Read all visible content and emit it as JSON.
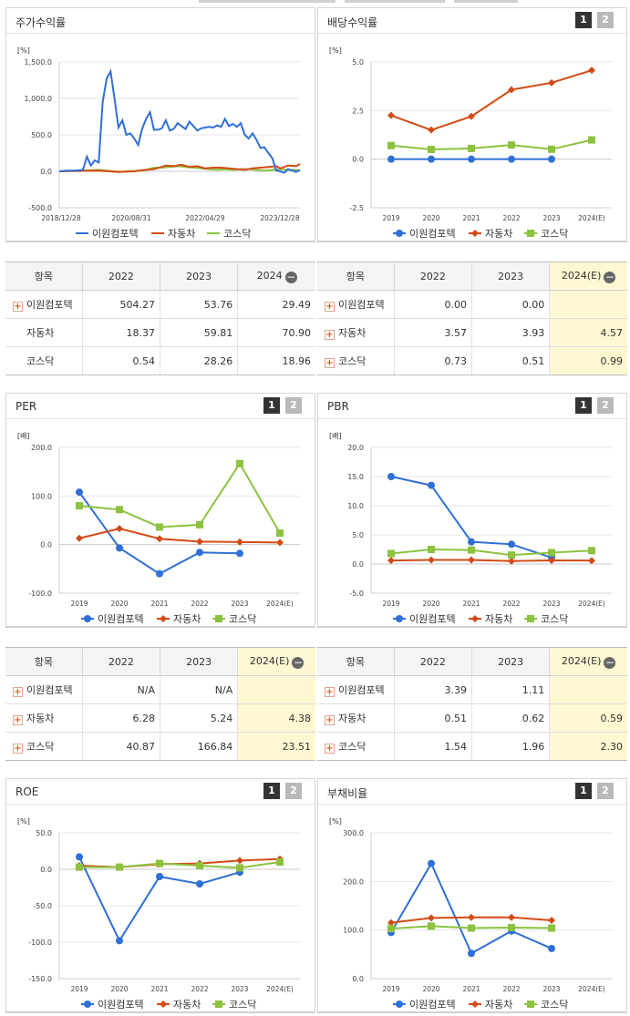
{
  "legend_names": [
    "이원컴포텍",
    "자동차",
    "코스닥"
  ],
  "colors": {
    "s1": "#2f6fd6",
    "s2": "#d44a15",
    "s3": "#8cc23f"
  },
  "buttons": {
    "one": "1",
    "two": "2"
  },
  "panels": {
    "stock": {
      "title": "주가수익률"
    },
    "dividend": {
      "title": "배당수익률"
    },
    "per": {
      "title": "PER"
    },
    "pbr": {
      "title": "PBR"
    },
    "roe": {
      "title": "ROE"
    },
    "debt": {
      "title": "부채비율"
    }
  },
  "tables": {
    "stock": {
      "headers": [
        "항목",
        "2022",
        "2023",
        "2024"
      ],
      "rows": [
        {
          "label": "이원컴포텍",
          "plus": true,
          "values": [
            "504.27",
            "53.76",
            "29.49"
          ]
        },
        {
          "label": "자동차",
          "plus": false,
          "values": [
            "18.37",
            "59.81",
            "70.90"
          ]
        },
        {
          "label": "코스닥",
          "plus": false,
          "values": [
            "0.54",
            "28.26",
            "18.96"
          ]
        }
      ]
    },
    "dividend": {
      "headers": [
        "항목",
        "2022",
        "2023",
        "2024(E)"
      ],
      "rows": [
        {
          "label": "이원컴포텍",
          "plus": true,
          "values": [
            "0.00",
            "0.00",
            ""
          ]
        },
        {
          "label": "자동차",
          "plus": true,
          "values": [
            "3.57",
            "3.93",
            "4.57"
          ]
        },
        {
          "label": "코스닥",
          "plus": true,
          "values": [
            "0.73",
            "0.51",
            "0.99"
          ]
        }
      ]
    },
    "per": {
      "headers": [
        "항목",
        "2022",
        "2023",
        "2024(E)"
      ],
      "rows": [
        {
          "label": "이원컴포텍",
          "plus": true,
          "values": [
            "N/A",
            "N/A",
            ""
          ]
        },
        {
          "label": "자동차",
          "plus": true,
          "values": [
            "6.28",
            "5.24",
            "4.38"
          ]
        },
        {
          "label": "코스닥",
          "plus": true,
          "values": [
            "40.87",
            "166.84",
            "23.51"
          ]
        }
      ]
    },
    "pbr": {
      "headers": [
        "항목",
        "2022",
        "2023",
        "2024(E)"
      ],
      "rows": [
        {
          "label": "이원컴포텍",
          "plus": true,
          "values": [
            "3.39",
            "1.11",
            ""
          ]
        },
        {
          "label": "자동차",
          "plus": true,
          "values": [
            "0.51",
            "0.62",
            "0.59"
          ]
        },
        {
          "label": "코스닥",
          "plus": true,
          "values": [
            "1.54",
            "1.96",
            "2.30"
          ]
        }
      ]
    }
  },
  "chart_data": [
    {
      "id": "stock",
      "type": "line",
      "unit": "[%]",
      "yticks": [
        "1,500.0",
        "1,000.0",
        "500.0",
        "0.0",
        "-500.0"
      ],
      "ylim": [
        -500,
        1500
      ],
      "xticks": [
        "2018/12/28",
        "2020/08/31",
        "2022/04/29",
        "2023/12/28"
      ],
      "x_domain": [
        0,
        61
      ],
      "series": [
        {
          "name": "이원컴포텍",
          "values": [
            [
              0,
              0
            ],
            [
              2,
              10
            ],
            [
              4,
              10
            ],
            [
              6,
              20
            ],
            [
              7,
              200
            ],
            [
              8,
              80
            ],
            [
              9,
              150
            ],
            [
              10,
              120
            ],
            [
              11,
              950
            ],
            [
              12,
              1270
            ],
            [
              13,
              1370
            ],
            [
              14,
              1000
            ],
            [
              15,
              600
            ],
            [
              16,
              700
            ],
            [
              17,
              500
            ],
            [
              18,
              520
            ],
            [
              19,
              450
            ],
            [
              20,
              360
            ],
            [
              21,
              580
            ],
            [
              22,
              720
            ],
            [
              23,
              810
            ],
            [
              24,
              570
            ],
            [
              25,
              570
            ],
            [
              26,
              590
            ],
            [
              27,
              700
            ],
            [
              28,
              560
            ],
            [
              29,
              580
            ],
            [
              30,
              660
            ],
            [
              31,
              620
            ],
            [
              32,
              580
            ],
            [
              33,
              680
            ],
            [
              34,
              620
            ],
            [
              35,
              560
            ],
            [
              36,
              590
            ],
            [
              37,
              600
            ],
            [
              38,
              610
            ],
            [
              39,
              600
            ],
            [
              40,
              630
            ],
            [
              41,
              610
            ],
            [
              42,
              720
            ],
            [
              43,
              620
            ],
            [
              44,
              650
            ],
            [
              45,
              610
            ],
            [
              46,
              660
            ],
            [
              47,
              500
            ],
            [
              48,
              450
            ],
            [
              49,
              520
            ],
            [
              50,
              430
            ],
            [
              51,
              320
            ],
            [
              52,
              330
            ],
            [
              53,
              250
            ],
            [
              54,
              180
            ],
            [
              55,
              10
            ],
            [
              56,
              0
            ],
            [
              57,
              -20
            ],
            [
              58,
              30
            ],
            [
              59,
              10
            ],
            [
              60,
              -10
            ],
            [
              61,
              20
            ]
          ]
        },
        {
          "name": "자동차",
          "values": [
            [
              0,
              0
            ],
            [
              5,
              5
            ],
            [
              10,
              10
            ],
            [
              15,
              -10
            ],
            [
              19,
              0
            ],
            [
              22,
              20
            ],
            [
              24,
              30
            ],
            [
              26,
              60
            ],
            [
              27,
              80
            ],
            [
              29,
              70
            ],
            [
              31,
              90
            ],
            [
              33,
              60
            ],
            [
              35,
              70
            ],
            [
              37,
              40
            ],
            [
              39,
              50
            ],
            [
              41,
              50
            ],
            [
              43,
              40
            ],
            [
              45,
              30
            ],
            [
              47,
              20
            ],
            [
              49,
              40
            ],
            [
              51,
              50
            ],
            [
              53,
              60
            ],
            [
              55,
              70
            ],
            [
              56,
              40
            ],
            [
              58,
              80
            ],
            [
              60,
              70
            ],
            [
              61,
              100
            ]
          ]
        },
        {
          "name": "코스닥",
          "values": [
            [
              0,
              0
            ],
            [
              5,
              10
            ],
            [
              10,
              20
            ],
            [
              15,
              -5
            ],
            [
              19,
              5
            ],
            [
              22,
              20
            ],
            [
              24,
              50
            ],
            [
              26,
              50
            ],
            [
              28,
              60
            ],
            [
              30,
              70
            ],
            [
              32,
              60
            ],
            [
              34,
              50
            ],
            [
              36,
              40
            ],
            [
              38,
              30
            ],
            [
              40,
              20
            ],
            [
              42,
              30
            ],
            [
              44,
              20
            ],
            [
              46,
              30
            ],
            [
              48,
              30
            ],
            [
              50,
              20
            ],
            [
              52,
              10
            ],
            [
              54,
              20
            ],
            [
              56,
              30
            ],
            [
              58,
              20
            ],
            [
              60,
              20
            ],
            [
              61,
              10
            ]
          ]
        }
      ]
    },
    {
      "id": "dividend",
      "type": "line",
      "unit": "[%]",
      "yticks": [
        "5.0",
        "2.5",
        "0.0",
        "-2.5"
      ],
      "ylim": [
        -2.5,
        5
      ],
      "categories": [
        "2019",
        "2020",
        "2021",
        "2022",
        "2023",
        "2024(E)"
      ],
      "series": [
        {
          "name": "이원컴포텍",
          "values": [
            0,
            0,
            0,
            0,
            0,
            null
          ]
        },
        {
          "name": "자동차",
          "values": [
            2.25,
            1.5,
            2.2,
            3.57,
            3.93,
            4.57
          ]
        },
        {
          "name": "코스닥",
          "values": [
            0.7,
            0.5,
            0.55,
            0.73,
            0.51,
            0.99
          ]
        }
      ]
    },
    {
      "id": "per",
      "type": "line",
      "unit": "[배]",
      "yticks": [
        "200.0",
        "100.0",
        "0.0",
        "-100.0"
      ],
      "ylim": [
        -100,
        200
      ],
      "categories": [
        "2019",
        "2020",
        "2021",
        "2022",
        "2023",
        "2024(E)"
      ],
      "series": [
        {
          "name": "이원컴포텍",
          "values": [
            108,
            -7,
            -60,
            -16,
            -18,
            null
          ]
        },
        {
          "name": "자동차",
          "values": [
            13,
            33,
            12,
            6.28,
            5.24,
            4.38
          ]
        },
        {
          "name": "코스닥",
          "values": [
            80,
            72,
            36,
            40.87,
            166.84,
            23.51
          ]
        }
      ]
    },
    {
      "id": "pbr",
      "type": "line",
      "unit": "[배]",
      "yticks": [
        "20.0",
        "15.0",
        "10.0",
        "5.0",
        "0.0",
        "-5.0"
      ],
      "ylim": [
        -5,
        20
      ],
      "categories": [
        "2019",
        "2020",
        "2021",
        "2022",
        "2023",
        "2024(E)"
      ],
      "series": [
        {
          "name": "이원컴포텍",
          "values": [
            15,
            13.5,
            3.8,
            3.39,
            1.11,
            null
          ]
        },
        {
          "name": "자동차",
          "values": [
            0.6,
            0.7,
            0.7,
            0.51,
            0.62,
            0.59
          ]
        },
        {
          "name": "코스닥",
          "values": [
            1.8,
            2.5,
            2.4,
            1.54,
            1.96,
            2.3
          ]
        }
      ]
    },
    {
      "id": "roe",
      "type": "line",
      "unit": "[%]",
      "yticks": [
        "50.0",
        "0.0",
        "-50.0",
        "-100.0",
        "-150.0"
      ],
      "ylim": [
        -150,
        50
      ],
      "categories": [
        "2019",
        "2020",
        "2021",
        "2022",
        "2023",
        "2024(E)"
      ],
      "series": [
        {
          "name": "이원컴포텍",
          "values": [
            17,
            -98,
            -10,
            -20,
            -4,
            null
          ]
        },
        {
          "name": "자동차",
          "values": [
            5,
            3,
            7,
            8,
            12,
            14
          ]
        },
        {
          "name": "코스닥",
          "values": [
            3,
            3,
            8,
            5,
            2,
            10
          ]
        }
      ]
    },
    {
      "id": "debt",
      "type": "line",
      "unit": "[%]",
      "yticks": [
        "300.0",
        "200.0",
        "100.0",
        "0.0"
      ],
      "ylim": [
        0,
        300
      ],
      "categories": [
        "2019",
        "2020",
        "2021",
        "2022",
        "2023",
        "2024(E)"
      ],
      "series": [
        {
          "name": "이원컴포텍",
          "values": [
            95,
            237,
            52,
            98,
            62,
            null
          ]
        },
        {
          "name": "자동차",
          "values": [
            115,
            125,
            126,
            126,
            120,
            null
          ]
        },
        {
          "name": "코스닥",
          "values": [
            103,
            108,
            104,
            105,
            104,
            null
          ]
        }
      ]
    }
  ]
}
